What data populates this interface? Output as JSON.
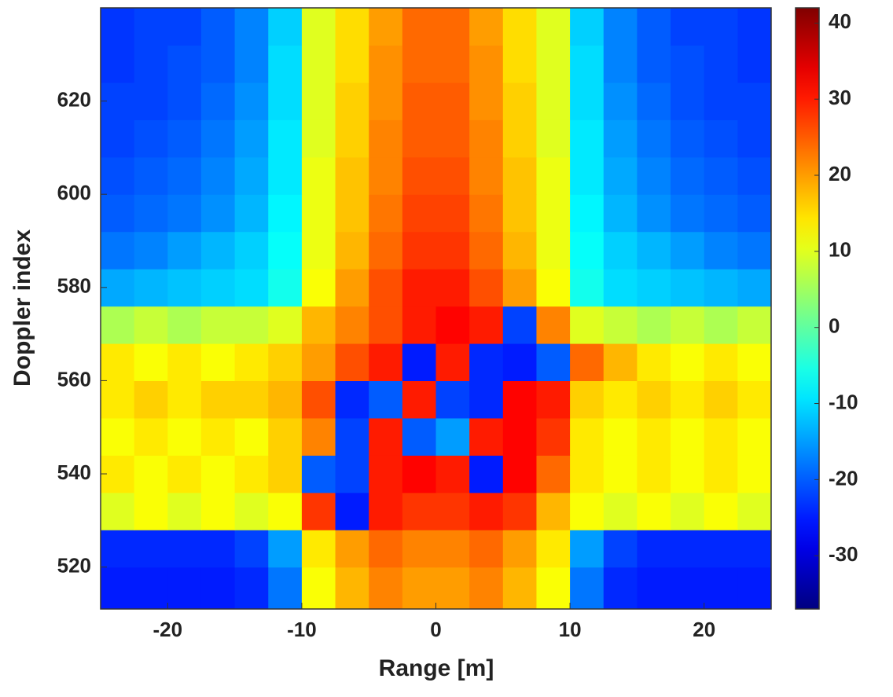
{
  "chart_data": {
    "type": "heatmap",
    "colormap": "jet",
    "x_label": "Range [m]",
    "y_label": "Doppler index",
    "x": [
      -23.75,
      -21.25,
      -18.75,
      -16.25,
      -13.75,
      -11.25,
      -8.75,
      -6.25,
      -3.75,
      -1.25,
      1.25,
      3.75,
      6.25,
      8.75,
      11.25,
      13.75,
      16.25,
      18.75,
      21.25,
      23.75
    ],
    "y": [
      516,
      524,
      532,
      540,
      548,
      556,
      564,
      572,
      580,
      588,
      596,
      604,
      612,
      620,
      628,
      636
    ],
    "z": [
      [
        -25,
        -25,
        -25,
        -25,
        -24,
        -18,
        12,
        18,
        22,
        20,
        20,
        22,
        18,
        12,
        -18,
        -24,
        -25,
        -25,
        -25,
        -25
      ],
      [
        -24,
        -24,
        -24,
        -24,
        -22,
        -15,
        14,
        20,
        24,
        22,
        22,
        24,
        20,
        14,
        -15,
        -22,
        -24,
        -24,
        -24,
        -24
      ],
      [
        10,
        12,
        10,
        12,
        10,
        12,
        28,
        -25,
        30,
        28,
        28,
        30,
        28,
        18,
        12,
        10,
        12,
        10,
        12,
        10
      ],
      [
        14,
        12,
        14,
        12,
        14,
        16,
        -20,
        -22,
        30,
        32,
        30,
        -25,
        32,
        24,
        14,
        12,
        14,
        12,
        14,
        12
      ],
      [
        12,
        14,
        12,
        14,
        12,
        16,
        22,
        -22,
        30,
        -20,
        -15,
        30,
        32,
        28,
        14,
        12,
        14,
        12,
        14,
        12
      ],
      [
        14,
        16,
        14,
        16,
        16,
        18,
        26,
        -24,
        -20,
        30,
        -22,
        -24,
        32,
        30,
        16,
        14,
        16,
        14,
        16,
        14
      ],
      [
        14,
        12,
        14,
        12,
        14,
        16,
        20,
        26,
        30,
        -25,
        30,
        -24,
        -25,
        -20,
        24,
        18,
        14,
        12,
        14,
        12
      ],
      [
        6,
        8,
        6,
        8,
        8,
        10,
        18,
        22,
        26,
        30,
        32,
        30,
        -22,
        22,
        10,
        8,
        6,
        8,
        6,
        8
      ],
      [
        -14,
        -13,
        -12,
        -11,
        -10,
        -6,
        12,
        20,
        26,
        30,
        30,
        26,
        20,
        12,
        -6,
        -10,
        -11,
        -12,
        -13,
        -14
      ],
      [
        -18,
        -17,
        -15,
        -13,
        -11,
        -7,
        11,
        18,
        24,
        28,
        28,
        24,
        18,
        11,
        -7,
        -11,
        -13,
        -15,
        -17,
        -18
      ],
      [
        -20,
        -19,
        -18,
        -16,
        -13,
        -8,
        11,
        17,
        23,
        27,
        27,
        23,
        17,
        11,
        -8,
        -13,
        -16,
        -18,
        -19,
        -20
      ],
      [
        -21,
        -20,
        -19,
        -17,
        -14,
        -9,
        11,
        17,
        22,
        26,
        26,
        22,
        17,
        11,
        -9,
        -14,
        -17,
        -19,
        -20,
        -21
      ],
      [
        -22,
        -21,
        -20,
        -18,
        -15,
        -9,
        10,
        16,
        22,
        25,
        25,
        22,
        16,
        10,
        -9,
        -15,
        -18,
        -20,
        -21,
        -22
      ],
      [
        -22,
        -22,
        -21,
        -19,
        -16,
        -10,
        10,
        16,
        21,
        25,
        25,
        21,
        16,
        10,
        -10,
        -16,
        -19,
        -21,
        -22,
        -22
      ],
      [
        -23,
        -22,
        -21,
        -20,
        -17,
        -10,
        10,
        15,
        21,
        24,
        24,
        21,
        15,
        10,
        -10,
        -17,
        -20,
        -21,
        -22,
        -23
      ],
      [
        -23,
        -22,
        -22,
        -20,
        -17,
        -11,
        10,
        15,
        20,
        24,
        24,
        20,
        15,
        10,
        -11,
        -17,
        -20,
        -22,
        -22,
        -23
      ]
    ],
    "xlim": [
      -25,
      25
    ],
    "xticks": [
      -20,
      -10,
      0,
      10,
      20
    ],
    "ylim": [
      511,
      640
    ],
    "yticks": [
      520,
      540,
      560,
      580,
      600,
      620
    ],
    "clim": [
      -37,
      42
    ],
    "cticks": [
      -30,
      -20,
      -10,
      0,
      10,
      20,
      30,
      40
    ]
  }
}
